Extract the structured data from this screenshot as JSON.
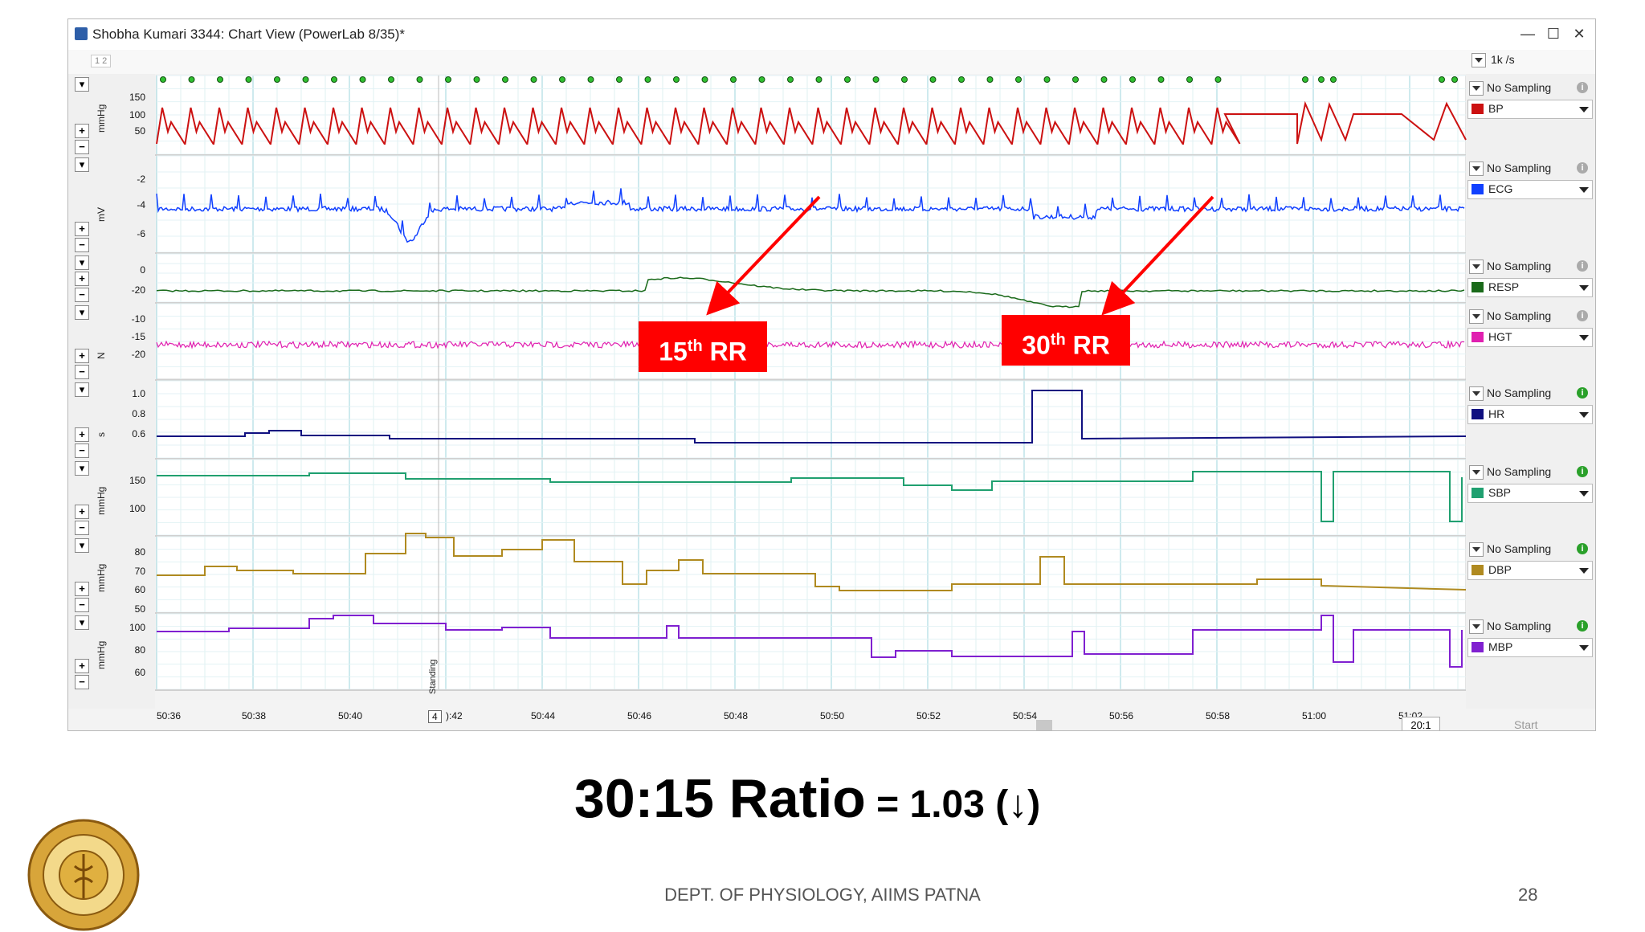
{
  "window": {
    "title": "Shobha Kumari 3344: Chart View (PowerLab 8/35)*",
    "pager": "1 2",
    "sample_rate": "1k /s",
    "controls": {
      "minimize": "—",
      "maximize": "☐",
      "close": "✕"
    }
  },
  "channels": [
    {
      "id": "bp",
      "name": "BP",
      "unit": "mmHg",
      "status": "No Sampling",
      "color": "#cc1111",
      "ticks": [
        "150",
        "100",
        "50"
      ],
      "info": "grey"
    },
    {
      "id": "ecg",
      "name": "ECG",
      "unit": "mV",
      "status": "No Sampling",
      "color": "#1040ff",
      "ticks": [
        "-2",
        "-4",
        "-6"
      ],
      "info": "grey"
    },
    {
      "id": "resp",
      "name": "RESP",
      "unit": "",
      "status": "No Sampling",
      "color": "#1a6a1a",
      "ticks": [
        "0",
        "-20"
      ],
      "info": "grey"
    },
    {
      "id": "hgt",
      "name": "HGT",
      "unit": "N",
      "status": "No Sampling",
      "color": "#e020b0",
      "ticks": [
        "-10",
        "-15",
        "-20"
      ],
      "info": "grey"
    },
    {
      "id": "hr",
      "name": "HR",
      "unit": "s",
      "status": "No Sampling",
      "color": "#101080",
      "ticks": [
        "1.0",
        "0.8",
        "0.6"
      ],
      "info": "green"
    },
    {
      "id": "sbp",
      "name": "SBP",
      "unit": "mmHg",
      "status": "No Sampling",
      "color": "#20a070",
      "ticks": [
        "150",
        "100"
      ],
      "info": "green"
    },
    {
      "id": "dbp",
      "name": "DBP",
      "unit": "mmHg",
      "status": "No Sampling",
      "color": "#b08a20",
      "ticks": [
        "80",
        "70",
        "60",
        "50"
      ],
      "info": "green"
    },
    {
      "id": "mbp",
      "name": "MBP",
      "unit": "mmHg",
      "status": "No Sampling",
      "color": "#8020d0",
      "ticks": [
        "100",
        "80",
        "60"
      ],
      "info": "green"
    }
  ],
  "time_axis": [
    "50:36",
    "50:38",
    "50:40",
    "",
    "50:44",
    "50:46",
    "50:48",
    "50:50",
    "50:52",
    "50:54",
    "50:56",
    "50:58",
    "51:00",
    "51:02"
  ],
  "time_cut": [
    "4",
    "):42"
  ],
  "comment_marker": "Standing",
  "bottom_bar": {
    "zoom": "20:1",
    "start": "Start"
  },
  "callouts": [
    {
      "base": "15",
      "sup": "th",
      "rest": " RR"
    },
    {
      "base": "30",
      "sup": "th",
      "rest": " RR"
    }
  ],
  "ratio": {
    "main": "30:15 Ratio",
    "value": " = 1.03 (↓)"
  },
  "footer": {
    "dept": "DEPT. OF PHYSIOLOGY, AIIMS PATNA",
    "page": "28"
  }
}
